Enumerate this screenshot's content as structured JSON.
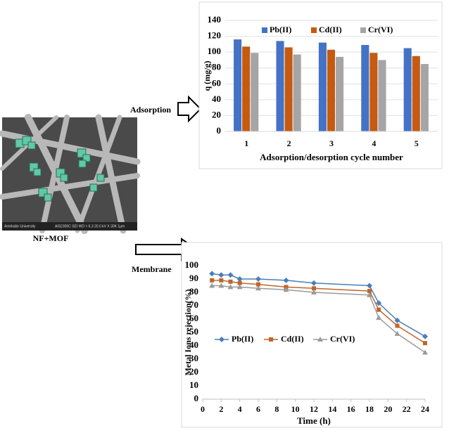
{
  "labels": {
    "adsorption": "Adsorption",
    "membrane": "Membrane",
    "sample": "NF+MOF",
    "sem_caption": "Amirkabir University",
    "sem_info": "AIS2300C  SEI  WD = 6.3  20.0 kV  X 30K  1μm"
  },
  "chart_data": [
    {
      "type": "bar",
      "ylabel": "q (mg/g)",
      "xlabel": "Adsorption/desorption cycle number",
      "categories": [
        "1",
        "2",
        "3",
        "4",
        "5"
      ],
      "series": [
        {
          "name": "Pb(II)",
          "color": "#4472c4",
          "values": [
            116,
            114,
            112,
            109,
            105
          ]
        },
        {
          "name": "Cd(II)",
          "color": "#c55a11",
          "values": [
            107,
            106,
            103,
            99,
            95
          ]
        },
        {
          "name": "Cr(VI)",
          "color": "#a5a5a5",
          "values": [
            99,
            97,
            94,
            90,
            85
          ]
        }
      ],
      "ylim": [
        0,
        140
      ],
      "yticks": [
        0,
        20,
        40,
        60,
        80,
        100,
        120,
        140
      ],
      "grid": true,
      "legend": "top"
    },
    {
      "type": "line",
      "ylabel": "Metal Ions rejection(%)",
      "xlabel": "Time (h)",
      "x": [
        1,
        2,
        3,
        4,
        6,
        9,
        12,
        18,
        19,
        21,
        24
      ],
      "series": [
        {
          "name": "Pb(II)",
          "color": "#4a7ebb",
          "marker": "diamond",
          "values": [
            94,
            93,
            93,
            90,
            90,
            89,
            87,
            85,
            72,
            59,
            47
          ]
        },
        {
          "name": "Cd(II)",
          "color": "#c0652a",
          "marker": "square",
          "values": [
            89,
            89,
            88,
            87,
            86,
            84,
            83,
            81,
            67,
            55,
            42
          ]
        },
        {
          "name": "Cr(VI)",
          "color": "#9a9a9a",
          "marker": "triangle",
          "values": [
            85,
            85,
            84,
            84,
            83,
            82,
            80,
            78,
            61,
            49,
            35
          ]
        }
      ],
      "xlim": [
        0,
        24
      ],
      "xticks": [
        0,
        2,
        4,
        6,
        8,
        10,
        12,
        14,
        16,
        18,
        20,
        22,
        24
      ],
      "ylim": [
        0,
        100
      ],
      "yticks": [
        0,
        10,
        20,
        30,
        40,
        50,
        60,
        70,
        80,
        90,
        100
      ],
      "grid": false,
      "legend": "center left"
    }
  ]
}
